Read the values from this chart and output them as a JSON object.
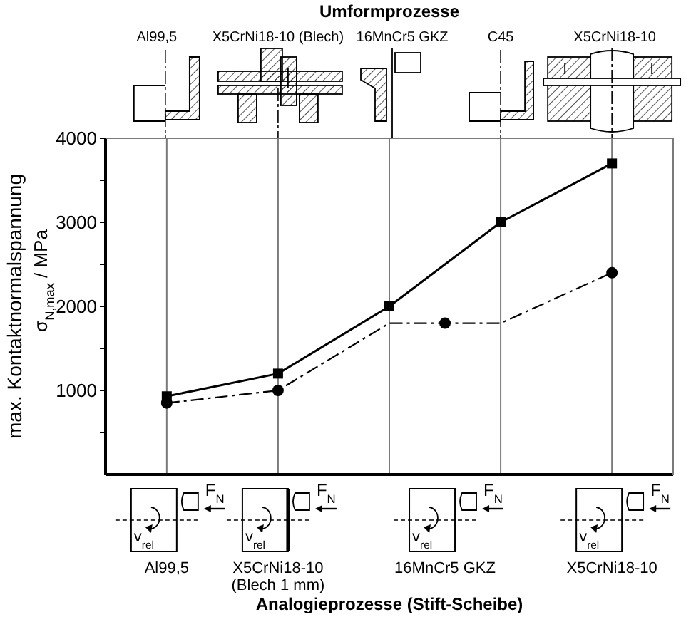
{
  "chart_data": [
    {
      "type": "other",
      "title": "Umformprozesse",
      "annotations": [
        "Al99,5",
        "X5CrNi18-10 (Blech)",
        "16MnCr5 GKZ",
        "C45",
        "X5CrNi18-10"
      ]
    },
    {
      "type": "line",
      "xlabel": "Analogieprozesse (Stift-Scheibe)",
      "ylabel": "max. Kontaktnormalspannung\nσ$_{N,max}$ / MPa",
      "categories": [
        "Al99,5",
        null,
        "X5CrNi18-10\n(Blech 1 mm)",
        null,
        null,
        "16MnCr5 GKZ",
        null,
        null,
        "X5CrNi18-10"
      ],
      "ylim": [
        0,
        4000
      ],
      "yticks": [
        {
          "value": 500,
          "label": null
        },
        1000,
        {
          "value": 1500,
          "label": null
        },
        2000,
        {
          "value": 2500,
          "label": null
        },
        3000,
        {
          "value": 3500,
          "label": null
        },
        4000
      ],
      "grid": "x",
      "series": [
        {
          "color": "#000000",
          "values": [
            930,
            null,
            1200,
            null,
            2000,
            null,
            3000,
            null,
            3700
          ],
          "marker": "square",
          "line_style": "solid"
        },
        {
          "color": "#000000",
          "values": [
            850,
            null,
            1000,
            null,
            1800,
            null,
            1800,
            null,
            2400
          ],
          "marker": "none",
          "line_style": "dashdot"
        },
        {
          "type": "scatter",
          "color": "#000000",
          "values": [
            850,
            null,
            1000,
            null,
            null,
            1800,
            null,
            null,
            2400
          ],
          "marker": "circle"
        }
      ],
      "annotations": [
        "F$_{N}$",
        "v$_{rel}$",
        "F$_{N}$",
        "v$_{rel}$",
        "F$_{N}$",
        "v$_{rel}$",
        "F$_{N}$",
        "v$_{rel}$"
      ]
    }
  ]
}
